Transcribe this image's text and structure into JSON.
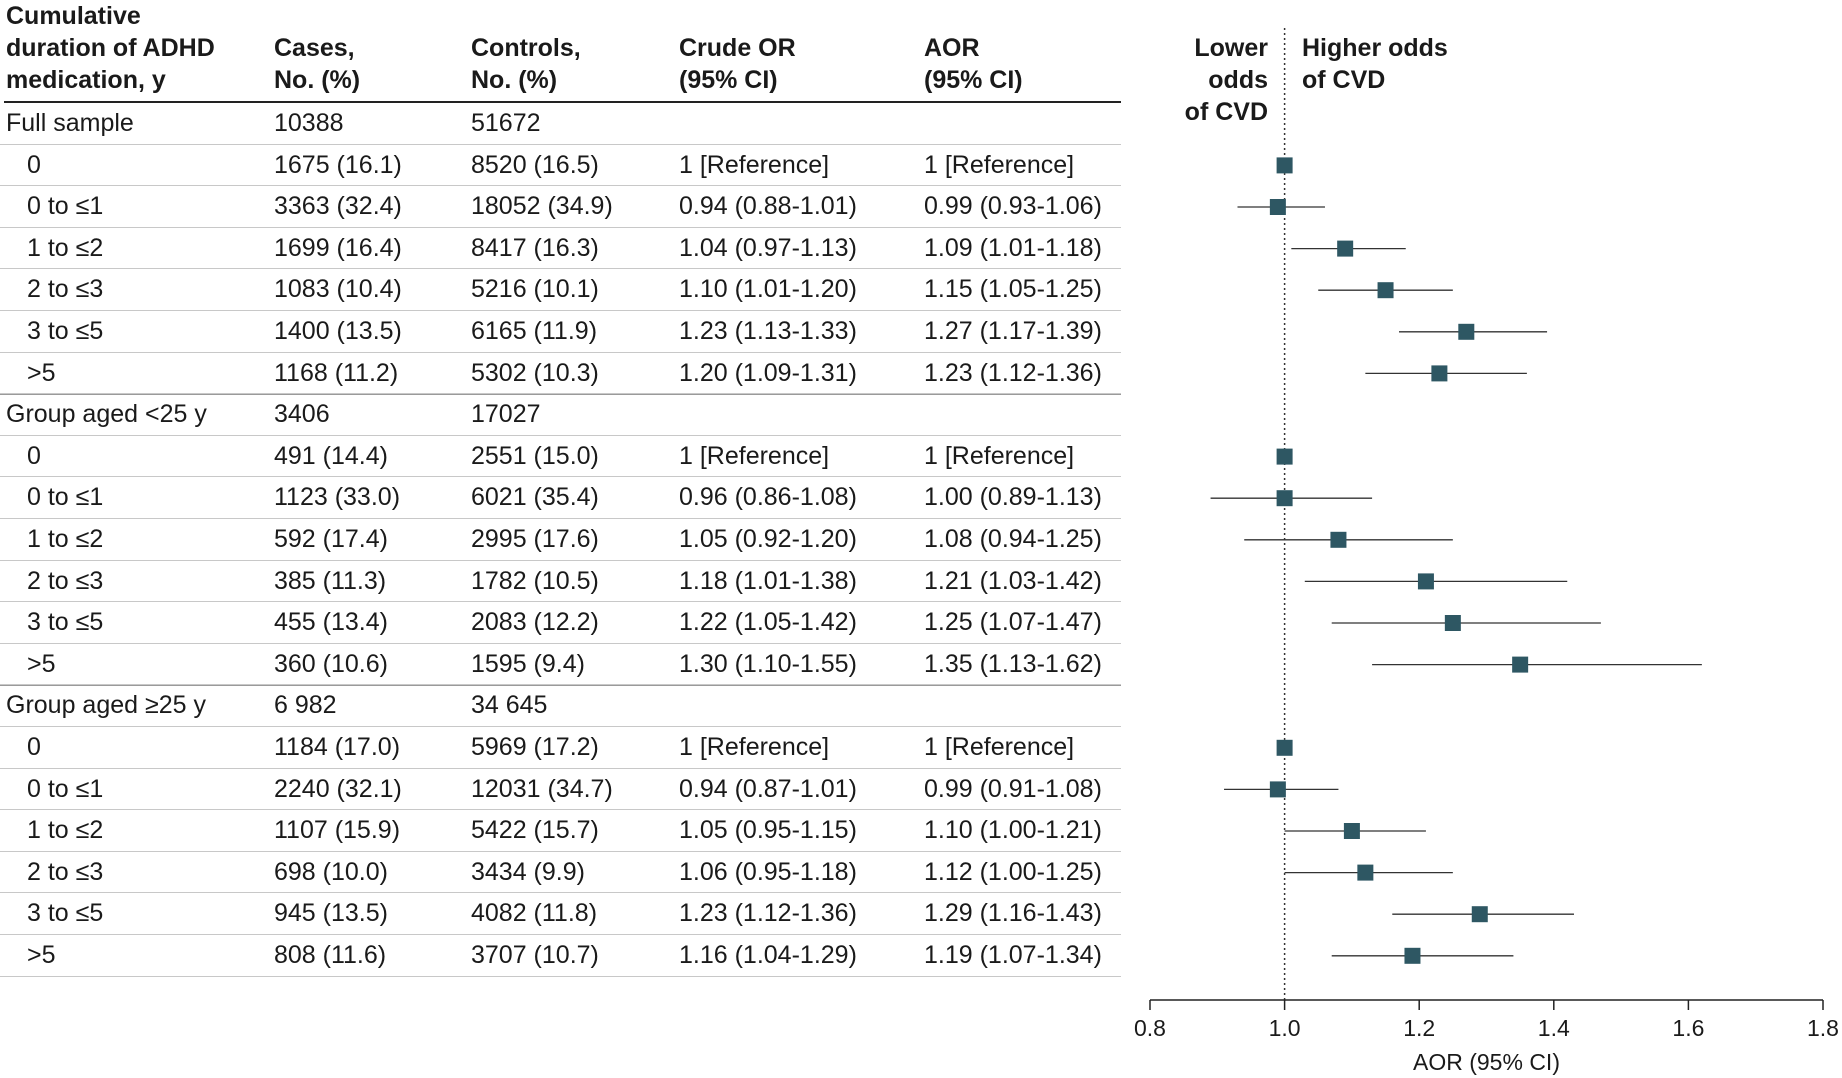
{
  "headers": {
    "duration": "Cumulative\nduration of ADHD\nmedication, y",
    "cases": "Cases,\nNo. (%)",
    "controls": "Controls,\nNo. (%)",
    "crude": "Crude OR\n(95% CI)",
    "aor": "AOR\n(95% CI)"
  },
  "plot_labels": {
    "lower": "Lower odds\nof CVD",
    "higher": "Higher odds\nof CVD"
  },
  "rows": [
    {
      "group": true,
      "label": "Full sample",
      "cases": "10388",
      "controls": "51672",
      "crude": "",
      "aor": ""
    },
    {
      "group": false,
      "label": "0",
      "cases": "1675 (16.1)",
      "controls": "8520 (16.5)",
      "crude": "1 [Reference]",
      "aor": "1 [Reference]"
    },
    {
      "group": false,
      "label": "0 to ≤1",
      "cases": "3363 (32.4)",
      "controls": "18052 (34.9)",
      "crude": "0.94 (0.88-1.01)",
      "aor": "0.99 (0.93-1.06)"
    },
    {
      "group": false,
      "label": "1 to ≤2",
      "cases": "1699 (16.4)",
      "controls": "8417 (16.3)",
      "crude": "1.04 (0.97-1.13)",
      "aor": "1.09 (1.01-1.18)"
    },
    {
      "group": false,
      "label": "2 to ≤3",
      "cases": "1083 (10.4)",
      "controls": "5216 (10.1)",
      "crude": "1.10 (1.01-1.20)",
      "aor": "1.15 (1.05-1.25)"
    },
    {
      "group": false,
      "label": "3 to ≤5",
      "cases": "1400 (13.5)",
      "controls": "6165 (11.9)",
      "crude": "1.23 (1.13-1.33)",
      "aor": "1.27 (1.17-1.39)"
    },
    {
      "group": false,
      "label": ">5",
      "cases": "1168 (11.2)",
      "controls": "5302 (10.3)",
      "crude": "1.20 (1.09-1.31)",
      "aor": "1.23 (1.12-1.36)"
    },
    {
      "group": true,
      "label": "Group aged <25 y",
      "cases": "3406",
      "controls": "17027",
      "crude": "",
      "aor": ""
    },
    {
      "group": false,
      "label": "0",
      "cases": "491 (14.4)",
      "controls": "2551 (15.0)",
      "crude": "1 [Reference]",
      "aor": "1 [Reference]"
    },
    {
      "group": false,
      "label": "0 to ≤1",
      "cases": "1123 (33.0)",
      "controls": "6021 (35.4)",
      "crude": "0.96 (0.86-1.08)",
      "aor": "1.00 (0.89-1.13)"
    },
    {
      "group": false,
      "label": "1 to ≤2",
      "cases": "592 (17.4)",
      "controls": "2995 (17.6)",
      "crude": "1.05 (0.92-1.20)",
      "aor": "1.08 (0.94-1.25)"
    },
    {
      "group": false,
      "label": "2 to ≤3",
      "cases": "385 (11.3)",
      "controls": "1782 (10.5)",
      "crude": "1.18 (1.01-1.38)",
      "aor": "1.21 (1.03-1.42)"
    },
    {
      "group": false,
      "label": "3 to ≤5",
      "cases": "455 (13.4)",
      "controls": "2083 (12.2)",
      "crude": "1.22 (1.05-1.42)",
      "aor": "1.25 (1.07-1.47)"
    },
    {
      "group": false,
      "label": ">5",
      "cases": "360 (10.6)",
      "controls": "1595 (9.4)",
      "crude": "1.30 (1.10-1.55)",
      "aor": "1.35 (1.13-1.62)"
    },
    {
      "group": true,
      "label": "Group aged ≥25 y",
      "cases": "6 982",
      "controls": "34 645",
      "crude": "",
      "aor": ""
    },
    {
      "group": false,
      "label": "0",
      "cases": "1184 (17.0)",
      "controls": "5969 (17.2)",
      "crude": "1 [Reference]",
      "aor": "1 [Reference]"
    },
    {
      "group": false,
      "label": "0 to ≤1",
      "cases": "2240 (32.1)",
      "controls": "12031 (34.7)",
      "crude": "0.94 (0.87-1.01)",
      "aor": "0.99 (0.91-1.08)"
    },
    {
      "group": false,
      "label": "1 to ≤2",
      "cases": "1107 (15.9)",
      "controls": "5422 (15.7)",
      "crude": "1.05 (0.95-1.15)",
      "aor": "1.10 (1.00-1.21)"
    },
    {
      "group": false,
      "label": "2 to ≤3",
      "cases": "698 (10.0)",
      "controls": "3434 (9.9)",
      "crude": "1.06 (0.95-1.18)",
      "aor": "1.12 (1.00-1.25)"
    },
    {
      "group": false,
      "label": "3 to ≤5",
      "cases": "945 (13.5)",
      "controls": "4082 (11.8)",
      "crude": "1.23 (1.12-1.36)",
      "aor": "1.29 (1.16-1.43)"
    },
    {
      "group": false,
      "label": ">5",
      "cases": "808 (11.6)",
      "controls": "3707 (10.7)",
      "crude": "1.16 (1.04-1.29)",
      "aor": "1.19 (1.07-1.34)"
    }
  ],
  "chart_data": {
    "type": "scatter",
    "subtype": "forest",
    "xlabel": "AOR (95% CI)",
    "xlim": [
      0.8,
      1.8
    ],
    "xticks": [
      0.8,
      1.0,
      1.2,
      1.4,
      1.6,
      1.8
    ],
    "xtick_labels": [
      "0.8",
      "1.0",
      "1.2",
      "1.4",
      "1.6",
      "1.8"
    ],
    "reference_line": 1.0,
    "marker_color": "#2e5763",
    "line_color": "#333333",
    "points": [
      {
        "row": 1,
        "aor": 1.0,
        "lo": null,
        "hi": null
      },
      {
        "row": 2,
        "aor": 0.99,
        "lo": 0.93,
        "hi": 1.06
      },
      {
        "row": 3,
        "aor": 1.09,
        "lo": 1.01,
        "hi": 1.18
      },
      {
        "row": 4,
        "aor": 1.15,
        "lo": 1.05,
        "hi": 1.25
      },
      {
        "row": 5,
        "aor": 1.27,
        "lo": 1.17,
        "hi": 1.39
      },
      {
        "row": 6,
        "aor": 1.23,
        "lo": 1.12,
        "hi": 1.36
      },
      {
        "row": 8,
        "aor": 1.0,
        "lo": null,
        "hi": null
      },
      {
        "row": 9,
        "aor": 1.0,
        "lo": 0.89,
        "hi": 1.13
      },
      {
        "row": 10,
        "aor": 1.08,
        "lo": 0.94,
        "hi": 1.25
      },
      {
        "row": 11,
        "aor": 1.21,
        "lo": 1.03,
        "hi": 1.42
      },
      {
        "row": 12,
        "aor": 1.25,
        "lo": 1.07,
        "hi": 1.47
      },
      {
        "row": 13,
        "aor": 1.35,
        "lo": 1.13,
        "hi": 1.62
      },
      {
        "row": 15,
        "aor": 1.0,
        "lo": null,
        "hi": null
      },
      {
        "row": 16,
        "aor": 0.99,
        "lo": 0.91,
        "hi": 1.08
      },
      {
        "row": 17,
        "aor": 1.1,
        "lo": 1.0,
        "hi": 1.21
      },
      {
        "row": 18,
        "aor": 1.12,
        "lo": 1.0,
        "hi": 1.25
      },
      {
        "row": 19,
        "aor": 1.29,
        "lo": 1.16,
        "hi": 1.43
      },
      {
        "row": 20,
        "aor": 1.19,
        "lo": 1.07,
        "hi": 1.34
      }
    ]
  }
}
